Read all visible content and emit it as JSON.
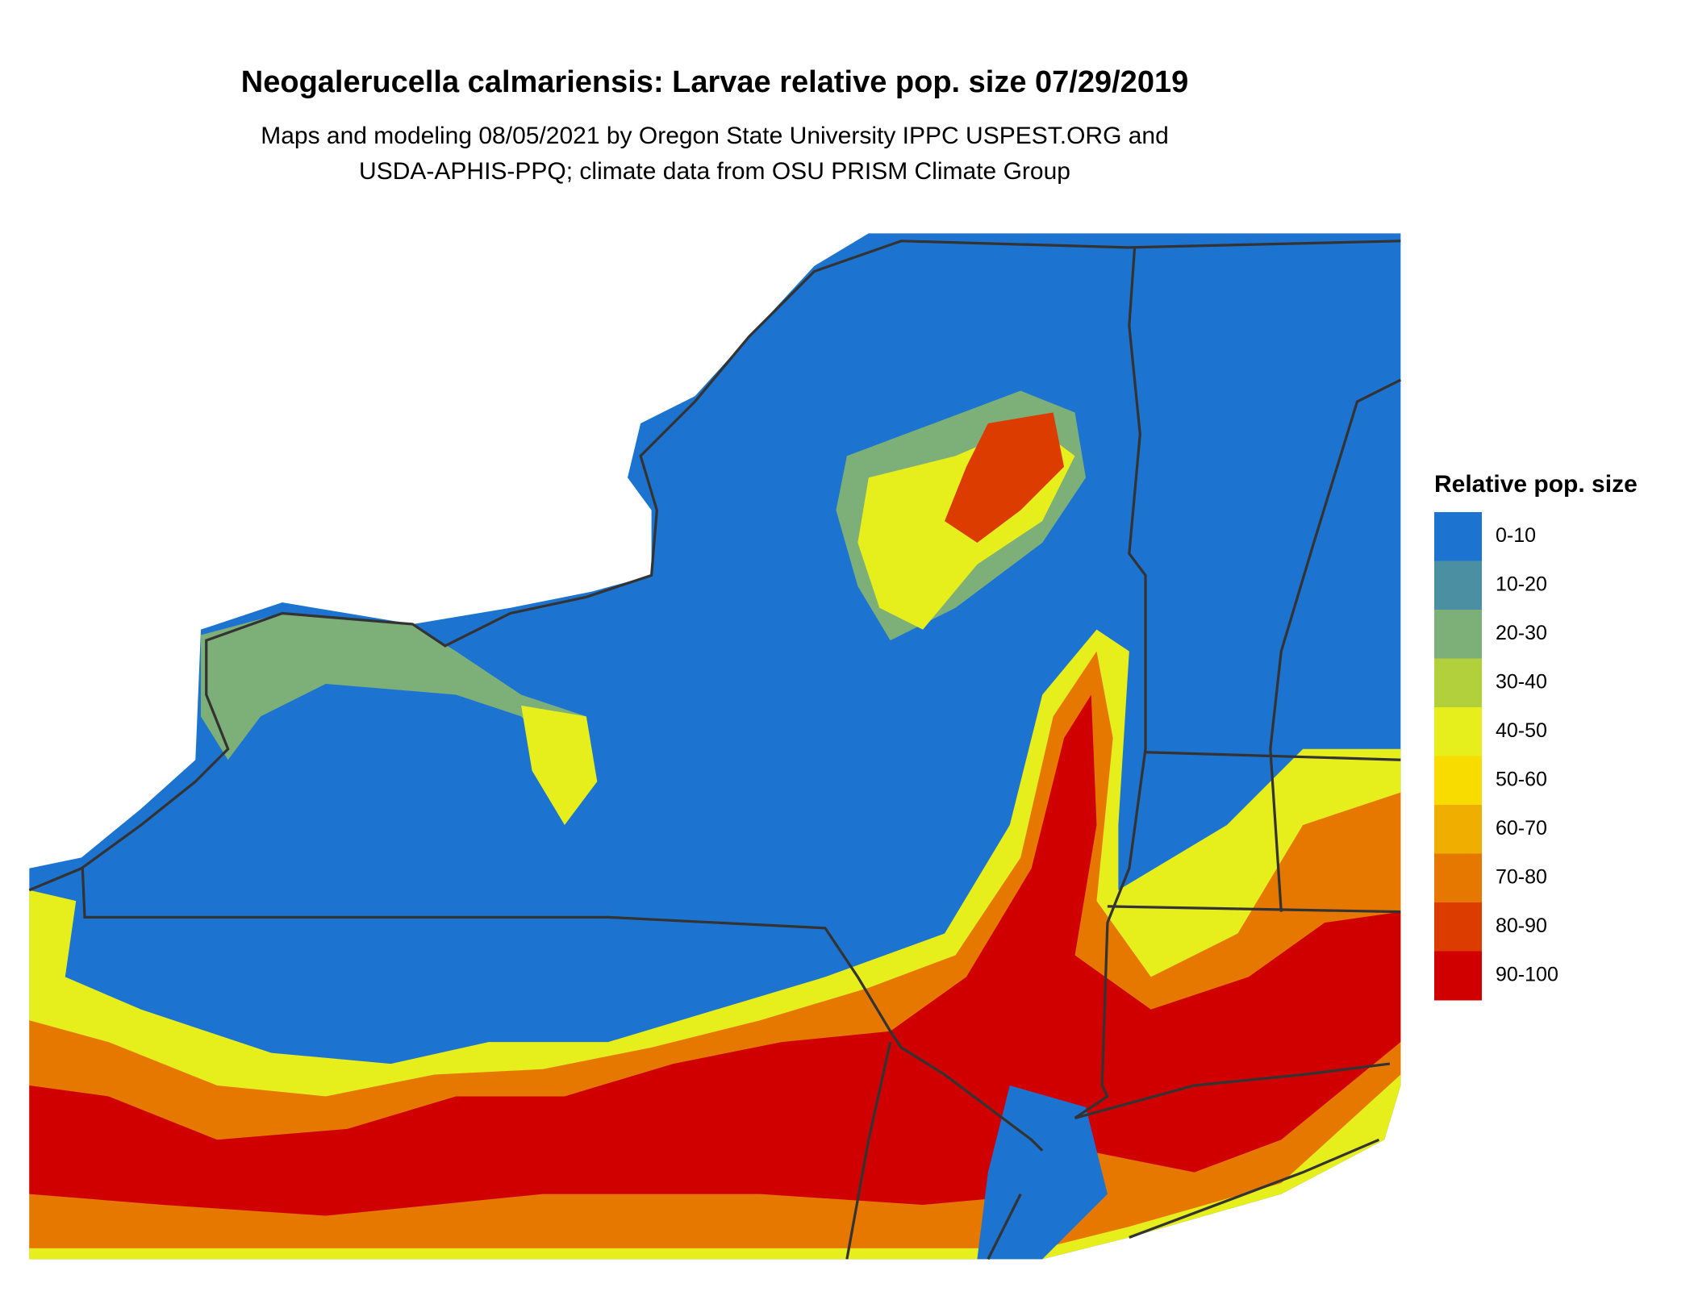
{
  "title": "Neogalerucella calmariensis: Larvae relative pop. size 07/29/2019",
  "subtitle": [
    "Maps and modeling 08/05/2021 by Oregon State University IPPC USPEST.ORG and",
    "USDA-APHIS-PPQ; climate data from OSU PRISM Climate Group"
  ],
  "legend": {
    "title": "Relative pop. size",
    "items": [
      {
        "label": "0-10",
        "color": "#1c74d0"
      },
      {
        "label": "10-20",
        "color": "#4a90a2"
      },
      {
        "label": "20-30",
        "color": "#7daf78"
      },
      {
        "label": "30-40",
        "color": "#b2d03c"
      },
      {
        "label": "40-50",
        "color": "#e6ee1c"
      },
      {
        "label": "50-60",
        "color": "#f8dc00"
      },
      {
        "label": "60-70",
        "color": "#f0ae00"
      },
      {
        "label": "70-80",
        "color": "#e67800"
      },
      {
        "label": "80-90",
        "color": "#dc3c00"
      },
      {
        "label": "90-100",
        "color": "#d00000"
      }
    ]
  }
}
